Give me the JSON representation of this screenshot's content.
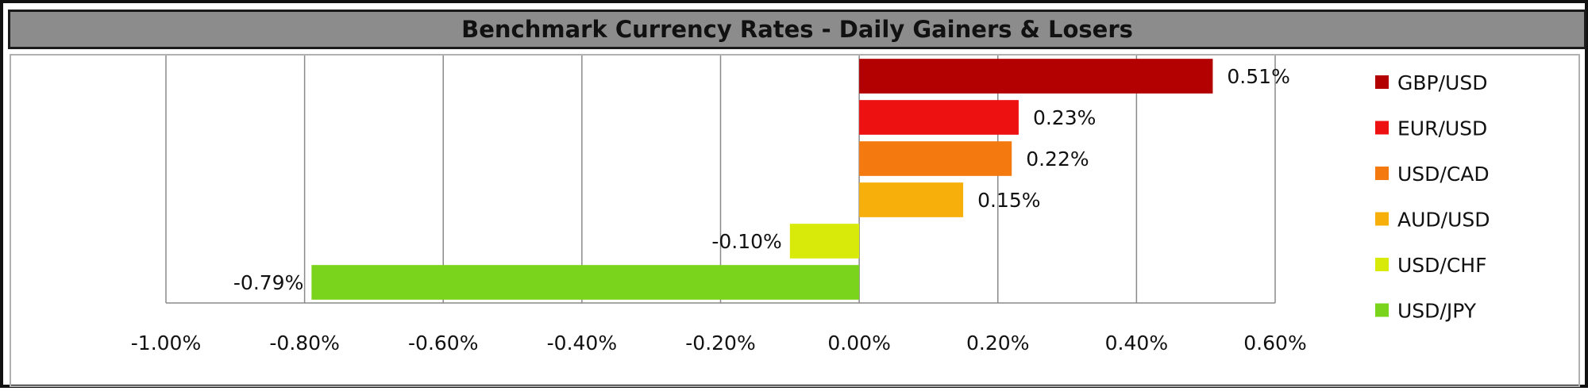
{
  "chart_data": {
    "type": "bar",
    "orientation": "horizontal",
    "title": "Benchmark Currency Rates - Daily Gainers & Losers",
    "categories": [
      "GBP/USD",
      "EUR/USD",
      "USD/CAD",
      "AUD/USD",
      "USD/CHF",
      "USD/JPY"
    ],
    "values": [
      0.51,
      0.23,
      0.22,
      0.15,
      -0.1,
      -0.79
    ],
    "data_labels": [
      "0.51%",
      "0.23%",
      "0.22%",
      "0.15%",
      "-0.10%",
      "-0.79%"
    ],
    "colors": [
      "#b30000",
      "#ee1111",
      "#f47a10",
      "#f7b00b",
      "#d7ea0a",
      "#7ad41b"
    ],
    "xlim": [
      -1.0,
      0.6
    ],
    "x_ticks": [
      -1.0,
      -0.8,
      -0.6,
      -0.4,
      -0.2,
      0.0,
      0.2,
      0.4,
      0.6
    ],
    "x_tick_labels": [
      "-1.00%",
      "-0.80%",
      "-0.60%",
      "-0.40%",
      "-0.20%",
      "0.00%",
      "0.20%",
      "0.40%",
      "0.60%"
    ],
    "xlabel": "",
    "ylabel": "",
    "grid": "vertical",
    "legend_position": "right"
  }
}
